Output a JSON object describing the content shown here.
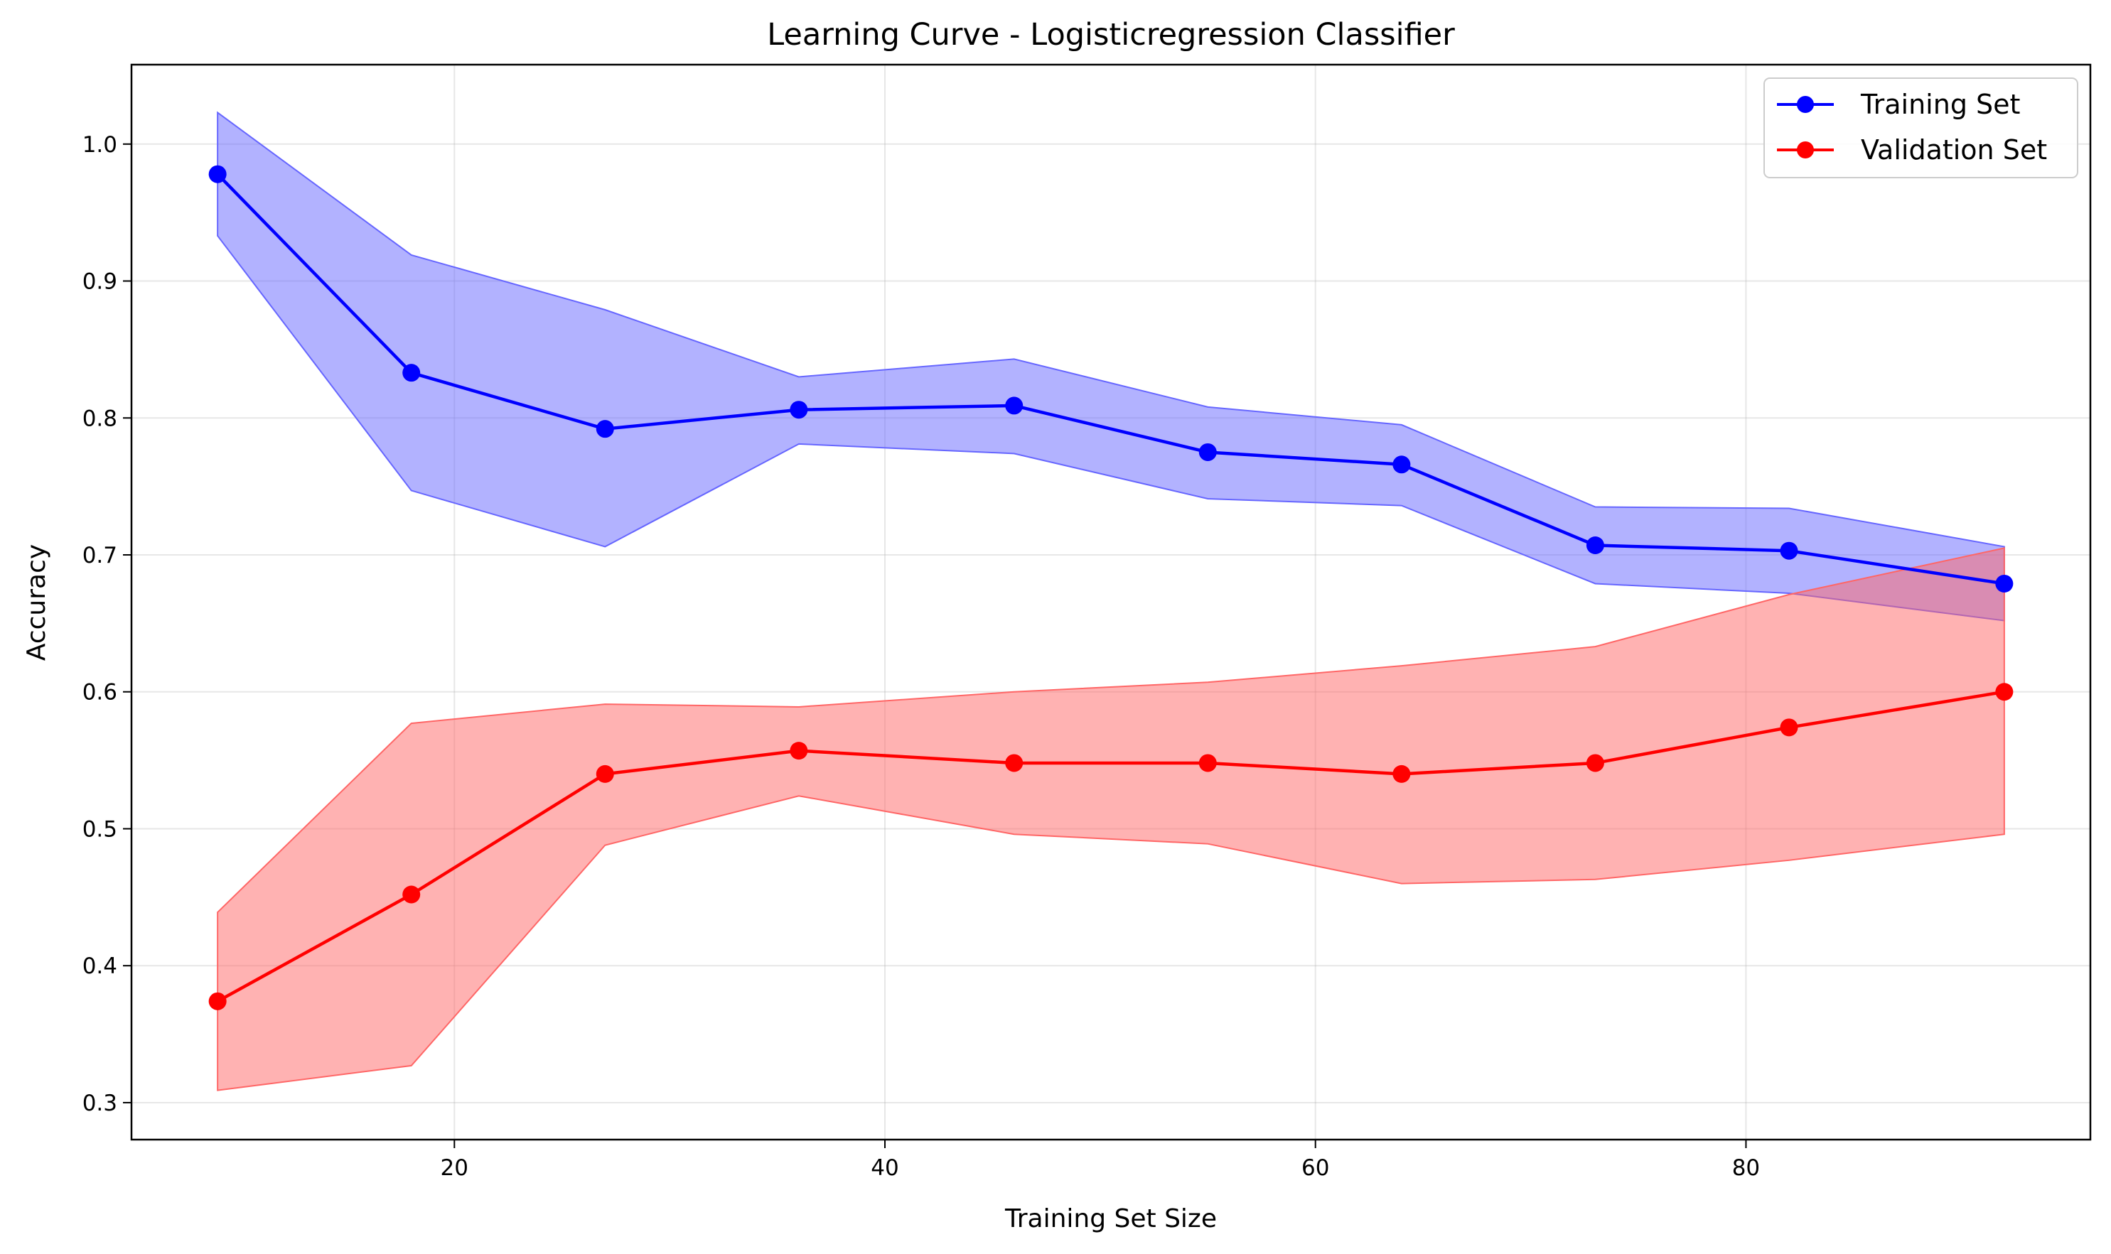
{
  "chart_data": {
    "type": "line",
    "title": "Learning Curve - Logisticregression Classifier",
    "xlabel": "Training Set Size",
    "ylabel": "Accuracy",
    "xlim": [
      5,
      96
    ],
    "ylim": [
      0.273,
      1.058
    ],
    "grid": true,
    "legend_position": "top-right",
    "xticks": [
      20,
      40,
      60,
      80
    ],
    "yticks": [
      0.3,
      0.4,
      0.5,
      0.6,
      0.7,
      0.8,
      0.9,
      1.0
    ],
    "xtick_labels": [
      "20",
      "40",
      "60",
      "80"
    ],
    "ytick_labels": [
      "0.3",
      "0.4",
      "0.5",
      "0.6",
      "0.7",
      "0.8",
      "0.9",
      "1.0"
    ],
    "x": [
      9,
      18,
      27,
      36,
      46,
      55,
      64,
      73,
      82,
      92
    ],
    "series": [
      {
        "name": "Training Set",
        "color": "#0000ff",
        "fill_color": "#6666ff",
        "values": [
          0.978,
          0.833,
          0.792,
          0.806,
          0.809,
          0.775,
          0.766,
          0.707,
          0.703,
          0.679
        ],
        "upper": [
          1.023,
          0.919,
          0.879,
          0.83,
          0.843,
          0.808,
          0.795,
          0.735,
          0.734,
          0.706
        ],
        "lower": [
          0.933,
          0.747,
          0.706,
          0.781,
          0.774,
          0.741,
          0.736,
          0.679,
          0.672,
          0.652
        ]
      },
      {
        "name": "Validation Set",
        "color": "#ff0000",
        "fill_color": "#ff6666",
        "values": [
          0.374,
          0.452,
          0.54,
          0.557,
          0.548,
          0.548,
          0.54,
          0.548,
          0.574,
          0.6
        ],
        "upper": [
          0.439,
          0.577,
          0.591,
          0.589,
          0.6,
          0.607,
          0.619,
          0.633,
          0.671,
          0.705
        ],
        "lower": [
          0.309,
          0.327,
          0.488,
          0.524,
          0.496,
          0.489,
          0.46,
          0.463,
          0.477,
          0.496
        ]
      }
    ]
  }
}
